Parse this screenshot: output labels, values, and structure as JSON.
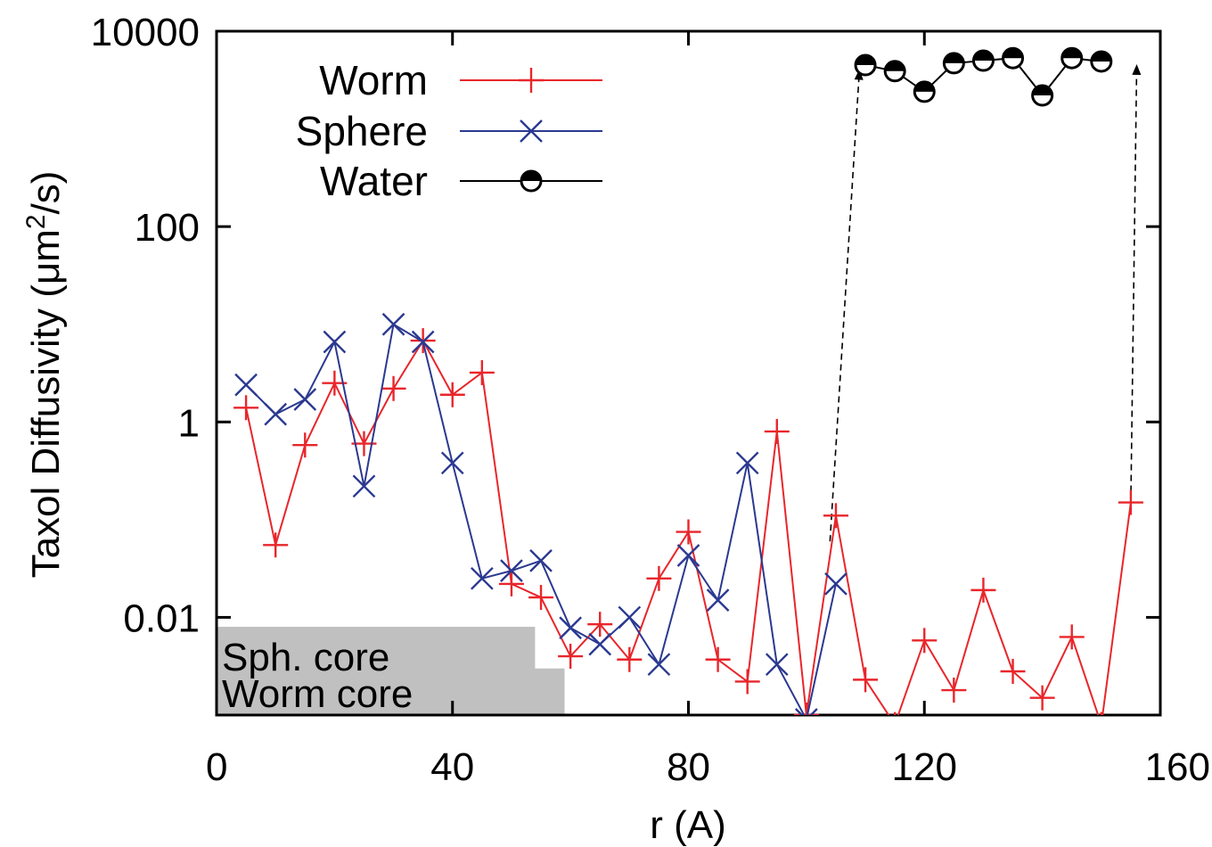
{
  "chart_data": {
    "type": "line",
    "xlabel": "r (A)",
    "ylabel_main": "Taxol Diffusivity (μm",
    "ylabel_sup": "2",
    "ylabel_end": "/s)",
    "xlim": [
      0,
      160
    ],
    "ylim": [
      0.001,
      10000
    ],
    "yscale": "log",
    "xticks": [
      0,
      40,
      80,
      120,
      160
    ],
    "xtick_labels": [
      "0",
      "40",
      "80",
      "120",
      "160"
    ],
    "yticks": [
      0.01,
      1,
      100,
      10000
    ],
    "ytick_labels": [
      "0.01",
      "1",
      "100",
      "10000"
    ],
    "legend_position": "top-left",
    "series": [
      {
        "name": "Worm",
        "color": "#e8262b",
        "marker": "plus",
        "x": [
          5,
          10,
          15,
          20,
          25,
          30,
          35,
          40,
          45,
          50,
          55,
          60,
          65,
          70,
          75,
          80,
          85,
          90,
          95,
          100,
          105,
          110,
          115,
          120,
          125,
          130,
          135,
          140,
          145,
          150,
          155
        ],
        "y": [
          1.4,
          0.055,
          0.58,
          2.5,
          0.6,
          2.2,
          6.8,
          1.9,
          3.2,
          0.022,
          0.016,
          0.004,
          0.0085,
          0.0037,
          0.025,
          0.075,
          0.0037,
          0.0022,
          0.8,
          0.001,
          0.11,
          0.0023,
          0.0008,
          0.0058,
          0.0018,
          0.019,
          0.0028,
          0.0015,
          0.0063,
          0.0008,
          0.15
        ]
      },
      {
        "name": "Sphere",
        "color": "#2b3990",
        "marker": "cross",
        "x": [
          5,
          10,
          15,
          20,
          25,
          30,
          35,
          40,
          45,
          50,
          55,
          60,
          65,
          70,
          75,
          80,
          85,
          90,
          95,
          100,
          105
        ],
        "y": [
          2.4,
          1.2,
          1.7,
          6.6,
          0.22,
          10,
          6.6,
          0.38,
          0.025,
          0.03,
          0.038,
          0.0078,
          0.0053,
          0.01,
          0.0033,
          0.043,
          0.015,
          0.38,
          0.0033,
          0.0009,
          0.022
        ]
      },
      {
        "name": "Water",
        "color": "#000000",
        "marker": "half-circle",
        "x": [
          110,
          115,
          120,
          125,
          130,
          135,
          140,
          145,
          150
        ],
        "y": [
          4500,
          3900,
          2400,
          4700,
          5000,
          5300,
          2200,
          5300,
          4900
        ]
      }
    ],
    "arrows": [
      {
        "from": [
          104,
          0.06
        ],
        "to": [
          109,
          4100
        ]
      },
      {
        "from": [
          155,
          0.15
        ],
        "to": [
          156,
          4600
        ]
      }
    ],
    "core_regions": [
      {
        "label": "Sph. core",
        "x_end": 54,
        "y_top": 0.008
      },
      {
        "label": "Worm core",
        "x_end": 59,
        "y_top": 0.003
      }
    ]
  }
}
